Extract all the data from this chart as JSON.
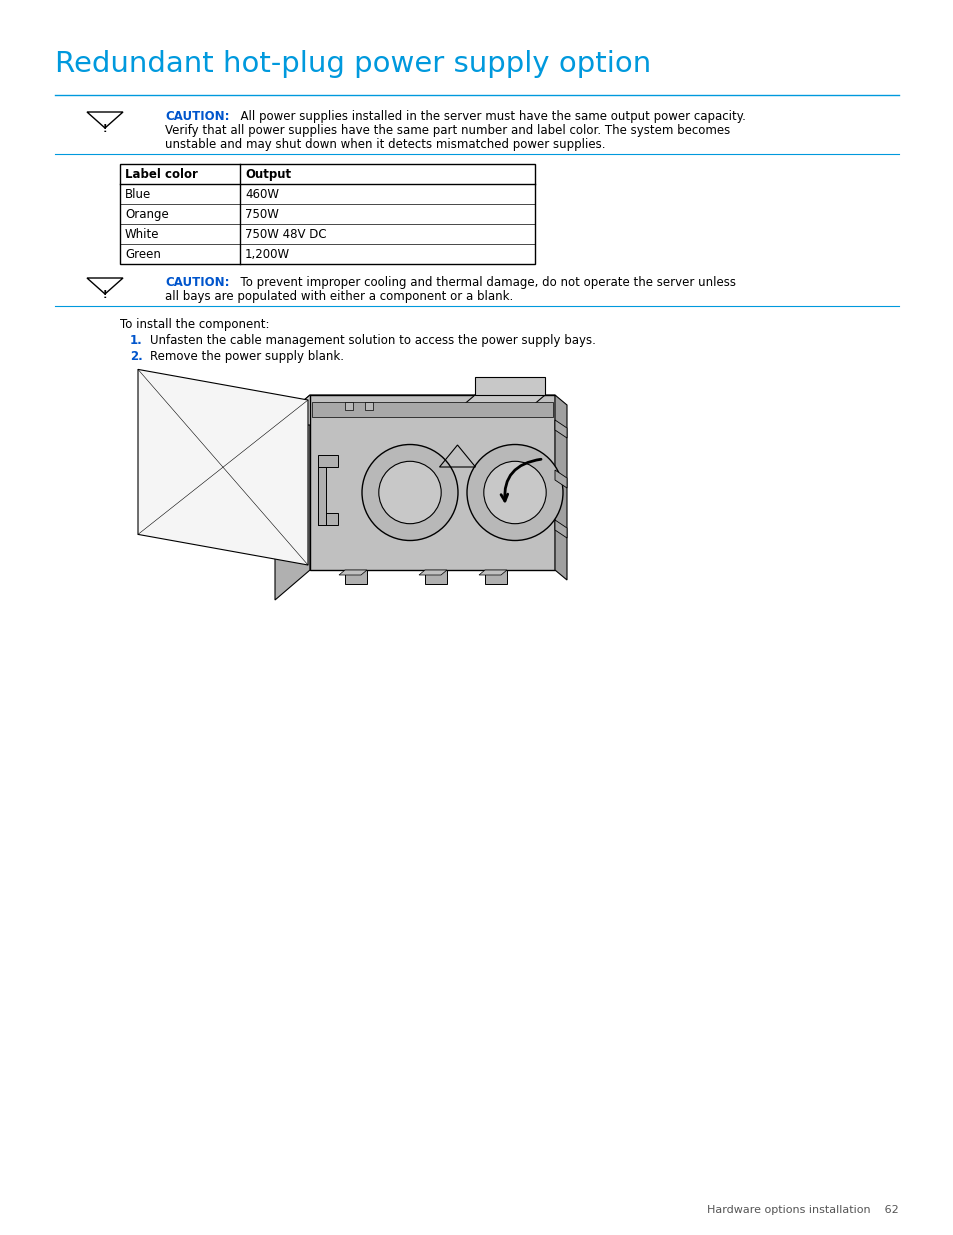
{
  "title": "Redundant hot-plug power supply option",
  "title_color": "#0099dd",
  "title_fontsize": 21,
  "bg_color": "#ffffff",
  "caution_color": "#0055cc",
  "caution1_line1": "All power supplies installed in the server must have the same output power capacity.",
  "caution1_line2": "Verify that all power supplies have the same part number and label color. The system becomes",
  "caution1_line3": "unstable and may shut down when it detects mismatched power supplies.",
  "caution2_line1": "To prevent improper cooling and thermal damage, do not operate the server unless",
  "caution2_line2": "all bays are populated with either a component or a blank.",
  "table_headers": [
    "Label color",
    "Output"
  ],
  "table_rows": [
    [
      "Blue",
      "460W"
    ],
    [
      "Orange",
      "750W"
    ],
    [
      "White",
      "750W 48V DC"
    ],
    [
      "Green",
      "1,200W"
    ]
  ],
  "intro_text": "To install the component:",
  "step1_num": "1.",
  "step1_text": "Unfasten the cable management solution to access the power supply bays.",
  "step2_num": "2.",
  "step2_text": "Remove the power supply blank.",
  "footer_text": "Hardware options installation    62",
  "step_color": "#0055cc",
  "line_color": "#0099dd",
  "body_font_size": 8.5,
  "table_font_size": 8.5,
  "gray_body": "#c0c0c0",
  "gray_light": "#d8d8d8",
  "gray_dark": "#a8a8a8"
}
